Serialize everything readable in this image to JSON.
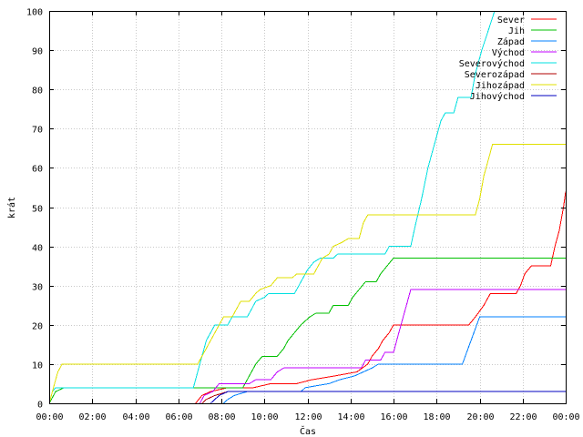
{
  "chart_data": {
    "type": "line",
    "title": "",
    "xlabel": "Čas",
    "ylabel": "krát",
    "xlim": [
      0,
      24
    ],
    "ylim": [
      0,
      100
    ],
    "grid": true,
    "legend_position": "top-right",
    "x_ticks": [
      {
        "value": 0,
        "label": "00:00"
      },
      {
        "value": 2,
        "label": "02:00"
      },
      {
        "value": 4,
        "label": "04:00"
      },
      {
        "value": 6,
        "label": "06:00"
      },
      {
        "value": 8,
        "label": "08:00"
      },
      {
        "value": 10,
        "label": "10:00"
      },
      {
        "value": 12,
        "label": "12:00"
      },
      {
        "value": 14,
        "label": "14:00"
      },
      {
        "value": 16,
        "label": "16:00"
      },
      {
        "value": 18,
        "label": "18:00"
      },
      {
        "value": 20,
        "label": "20:00"
      },
      {
        "value": 22,
        "label": "22:00"
      },
      {
        "value": 24,
        "label": "00:00"
      }
    ],
    "y_ticks": [
      {
        "value": 0,
        "label": "0"
      },
      {
        "value": 10,
        "label": "10"
      },
      {
        "value": 20,
        "label": "20"
      },
      {
        "value": 30,
        "label": "30"
      },
      {
        "value": 40,
        "label": "40"
      },
      {
        "value": 50,
        "label": "50"
      },
      {
        "value": 60,
        "label": "60"
      },
      {
        "value": 70,
        "label": "70"
      },
      {
        "value": 80,
        "label": "80"
      },
      {
        "value": 90,
        "label": "90"
      },
      {
        "value": 100,
        "label": "100"
      }
    ],
    "series": [
      {
        "name": "Sever",
        "color": "#ff0000",
        "points": [
          [
            6.8,
            0
          ],
          [
            6.95,
            1
          ],
          [
            7.1,
            2
          ],
          [
            7.5,
            3
          ],
          [
            8.3,
            4
          ],
          [
            9.5,
            4
          ],
          [
            10.3,
            5
          ],
          [
            11.5,
            5
          ],
          [
            12.2,
            6
          ],
          [
            13.3,
            7
          ],
          [
            14.3,
            8
          ],
          [
            14.8,
            10
          ],
          [
            15.0,
            12
          ],
          [
            15.3,
            14
          ],
          [
            15.5,
            16
          ],
          [
            15.8,
            18
          ],
          [
            16.0,
            20
          ],
          [
            19.5,
            20
          ],
          [
            19.8,
            22
          ],
          [
            20.2,
            25
          ],
          [
            20.5,
            28
          ],
          [
            21.7,
            28
          ],
          [
            21.9,
            30
          ],
          [
            22.1,
            33
          ],
          [
            22.4,
            35
          ],
          [
            23.3,
            35
          ],
          [
            23.5,
            40
          ],
          [
            23.7,
            44
          ],
          [
            23.9,
            50
          ],
          [
            24,
            54
          ]
        ]
      },
      {
        "name": "Jih",
        "color": "#00c000",
        "points": [
          [
            0,
            0
          ],
          [
            0.3,
            3
          ],
          [
            0.7,
            4
          ],
          [
            9.0,
            4
          ],
          [
            9.2,
            6
          ],
          [
            9.4,
            8
          ],
          [
            9.6,
            10
          ],
          [
            9.9,
            12
          ],
          [
            10.6,
            12
          ],
          [
            10.9,
            14
          ],
          [
            11.1,
            16
          ],
          [
            11.4,
            18
          ],
          [
            11.7,
            20
          ],
          [
            12.1,
            22
          ],
          [
            12.4,
            23
          ],
          [
            13.0,
            23
          ],
          [
            13.2,
            25
          ],
          [
            13.9,
            25
          ],
          [
            14.1,
            27
          ],
          [
            14.4,
            29
          ],
          [
            14.7,
            31
          ],
          [
            15.2,
            31
          ],
          [
            15.4,
            33
          ],
          [
            15.7,
            35
          ],
          [
            16.0,
            37
          ],
          [
            24,
            37
          ]
        ]
      },
      {
        "name": "Západ",
        "color": "#0080ff",
        "points": [
          [
            8.1,
            0
          ],
          [
            8.3,
            1
          ],
          [
            8.6,
            2
          ],
          [
            9.2,
            3
          ],
          [
            11.7,
            3
          ],
          [
            11.9,
            4
          ],
          [
            13.0,
            5
          ],
          [
            13.5,
            6
          ],
          [
            14.2,
            7
          ],
          [
            14.6,
            8
          ],
          [
            15.0,
            9
          ],
          [
            15.3,
            10
          ],
          [
            19.2,
            10
          ],
          [
            19.4,
            13
          ],
          [
            19.6,
            16
          ],
          [
            19.8,
            19
          ],
          [
            20.0,
            22
          ],
          [
            24,
            22
          ]
        ]
      },
      {
        "name": "Východ",
        "color": "#c000ff",
        "points": [
          [
            7.0,
            0
          ],
          [
            7.2,
            2
          ],
          [
            7.6,
            3
          ],
          [
            7.9,
            5
          ],
          [
            9.3,
            5
          ],
          [
            9.6,
            6
          ],
          [
            10.3,
            6
          ],
          [
            10.6,
            8
          ],
          [
            10.9,
            9
          ],
          [
            14.5,
            9
          ],
          [
            14.7,
            11
          ],
          [
            15.4,
            11
          ],
          [
            15.6,
            13
          ],
          [
            16.0,
            13
          ],
          [
            16.2,
            17
          ],
          [
            16.4,
            21
          ],
          [
            16.6,
            25
          ],
          [
            16.8,
            29
          ],
          [
            24,
            29
          ]
        ]
      },
      {
        "name": "Severovýchod",
        "color": "#00e0e0",
        "points": [
          [
            0,
            0
          ],
          [
            0.15,
            3
          ],
          [
            0.3,
            4
          ],
          [
            6.7,
            4
          ],
          [
            6.9,
            8
          ],
          [
            7.1,
            12
          ],
          [
            7.3,
            16
          ],
          [
            7.5,
            18
          ],
          [
            7.7,
            20
          ],
          [
            8.3,
            20
          ],
          [
            8.5,
            22
          ],
          [
            9.2,
            22
          ],
          [
            9.4,
            24
          ],
          [
            9.6,
            26
          ],
          [
            10.0,
            27
          ],
          [
            10.2,
            28
          ],
          [
            11.4,
            28
          ],
          [
            11.6,
            30
          ],
          [
            11.8,
            32
          ],
          [
            12.0,
            34
          ],
          [
            12.3,
            36
          ],
          [
            12.6,
            37
          ],
          [
            13.2,
            37
          ],
          [
            13.4,
            38
          ],
          [
            15.6,
            38
          ],
          [
            15.8,
            40
          ],
          [
            16.8,
            40
          ],
          [
            17.0,
            45
          ],
          [
            17.3,
            52
          ],
          [
            17.6,
            60
          ],
          [
            17.9,
            66
          ],
          [
            18.2,
            72
          ],
          [
            18.4,
            74
          ],
          [
            18.8,
            74
          ],
          [
            19.0,
            78
          ],
          [
            19.6,
            78
          ],
          [
            19.8,
            84
          ],
          [
            20.1,
            90
          ],
          [
            20.4,
            95
          ],
          [
            20.7,
            100
          ]
        ]
      },
      {
        "name": "Severozápad",
        "color": "#b00000",
        "points": [
          [
            7.1,
            0
          ],
          [
            7.3,
            1
          ],
          [
            7.7,
            2
          ],
          [
            8.3,
            3
          ],
          [
            24,
            3
          ]
        ]
      },
      {
        "name": "Jihozápad",
        "color": "#e0e000",
        "points": [
          [
            0,
            0
          ],
          [
            0.2,
            4
          ],
          [
            0.4,
            8
          ],
          [
            0.6,
            10
          ],
          [
            6.9,
            10
          ],
          [
            7.1,
            12
          ],
          [
            7.3,
            14
          ],
          [
            7.5,
            16
          ],
          [
            7.7,
            18
          ],
          [
            7.9,
            20
          ],
          [
            8.1,
            22
          ],
          [
            8.5,
            22
          ],
          [
            8.7,
            24
          ],
          [
            8.9,
            26
          ],
          [
            9.3,
            26
          ],
          [
            9.6,
            28
          ],
          [
            9.8,
            29
          ],
          [
            10.3,
            30
          ],
          [
            10.6,
            32
          ],
          [
            11.3,
            32
          ],
          [
            11.5,
            33
          ],
          [
            12.3,
            33
          ],
          [
            12.5,
            35
          ],
          [
            12.7,
            37
          ],
          [
            13.0,
            38
          ],
          [
            13.2,
            40
          ],
          [
            13.6,
            41
          ],
          [
            13.9,
            42
          ],
          [
            14.4,
            42
          ],
          [
            14.6,
            46
          ],
          [
            14.8,
            48
          ],
          [
            19.8,
            48
          ],
          [
            20.0,
            52
          ],
          [
            20.2,
            58
          ],
          [
            20.4,
            62
          ],
          [
            20.6,
            66
          ],
          [
            24,
            66
          ]
        ]
      },
      {
        "name": "Jihovýchod",
        "color": "#0000c0",
        "points": [
          [
            7.5,
            0
          ],
          [
            7.7,
            1
          ],
          [
            7.9,
            2
          ],
          [
            8.3,
            3
          ],
          [
            24,
            3
          ]
        ]
      }
    ]
  }
}
